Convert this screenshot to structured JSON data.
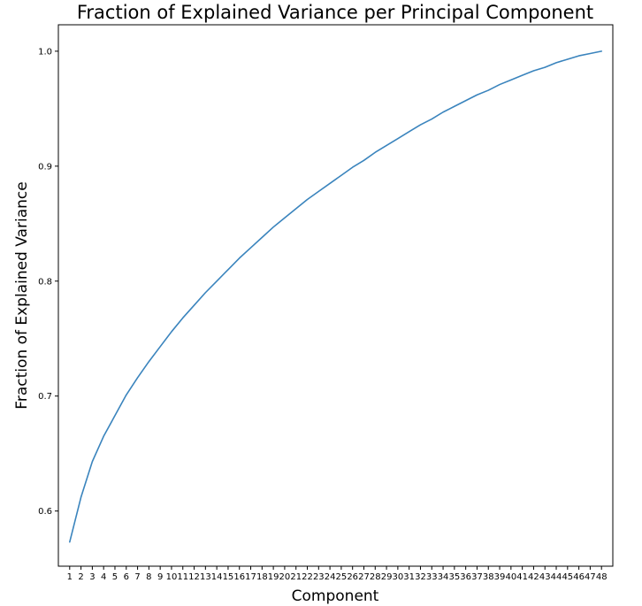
{
  "chart_data": {
    "type": "line",
    "title": "Fraction of Explained Variance per Principal Component",
    "xlabel": "Component",
    "ylabel": "Fraction of Explained Variance",
    "x": [
      1,
      2,
      3,
      4,
      5,
      6,
      7,
      8,
      9,
      10,
      11,
      12,
      13,
      14,
      15,
      16,
      17,
      18,
      19,
      20,
      21,
      22,
      23,
      24,
      25,
      26,
      27,
      28,
      29,
      30,
      31,
      32,
      33,
      34,
      35,
      36,
      37,
      38,
      39,
      40,
      41,
      42,
      43,
      44,
      45,
      46,
      47,
      48
    ],
    "xticks": [
      "1",
      "2",
      "3",
      "4",
      "5",
      "6",
      "7",
      "8",
      "9",
      "10",
      "11",
      "12",
      "13",
      "14",
      "15",
      "16",
      "17",
      "18",
      "19",
      "20",
      "21",
      "22",
      "23",
      "24",
      "25",
      "26",
      "27",
      "28",
      "29",
      "30",
      "31",
      "32",
      "33",
      "34",
      "35",
      "36",
      "37",
      "38",
      "39",
      "40",
      "41",
      "42",
      "43",
      "44",
      "45",
      "46",
      "47",
      "48"
    ],
    "yticks": [
      "0.6",
      "0.7",
      "0.8",
      "0.9",
      "1.0"
    ],
    "ytick_values": [
      0.6,
      0.7,
      0.8,
      0.9,
      1.0
    ],
    "series": [
      {
        "color": "#3a84bd",
        "values": [
          0.573,
          0.612,
          0.643,
          0.665,
          0.683,
          0.701,
          0.716,
          0.73,
          0.743,
          0.756,
          0.768,
          0.779,
          0.79,
          0.8,
          0.81,
          0.82,
          0.829,
          0.838,
          0.847,
          0.855,
          0.863,
          0.871,
          0.878,
          0.885,
          0.892,
          0.899,
          0.905,
          0.912,
          0.918,
          0.924,
          0.93,
          0.936,
          0.941,
          0.947,
          0.952,
          0.957,
          0.962,
          0.966,
          0.971,
          0.975,
          0.979,
          0.983,
          0.986,
          0.99,
          0.993,
          0.996,
          0.998,
          1.0
        ]
      }
    ],
    "xlim": [
      0.0,
      49.0
    ],
    "ylim": [
      0.552,
      1.023
    ],
    "grid": false,
    "legend": "none"
  }
}
